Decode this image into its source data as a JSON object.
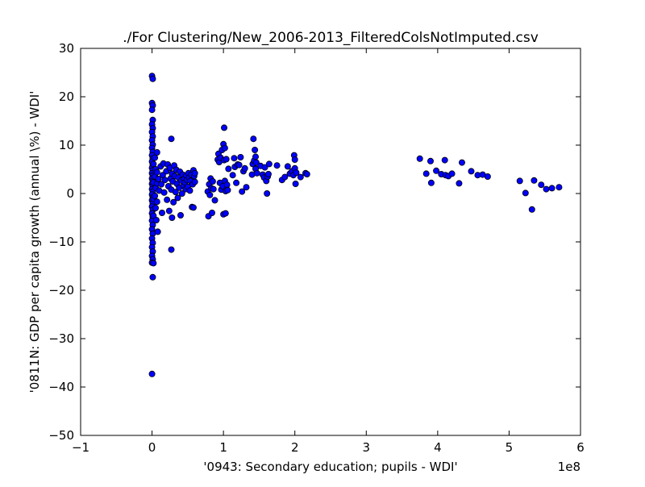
{
  "chart_data": {
    "type": "scatter",
    "title": "./For Clustering/New_2006-2013_FilteredColsNotImputed.csv",
    "xlabel": "'0943: Secondary education; pupils - WDI'",
    "ylabel": "'0811N: GDP per capita growth  (annual \\%) - WDI'",
    "x_offset_label": "1e8",
    "xlim": [
      -1,
      6
    ],
    "ylim": [
      -50,
      30
    ],
    "x_ticks": [
      -1,
      0,
      1,
      2,
      3,
      4,
      5,
      6
    ],
    "x_tick_labels": [
      "−1",
      "0",
      "1",
      "2",
      "3",
      "4",
      "5",
      "6"
    ],
    "y_ticks": [
      -50,
      -40,
      -30,
      -20,
      -10,
      0,
      10,
      20,
      30
    ],
    "y_tick_labels": [
      "−50",
      "−40",
      "−30",
      "−20",
      "−10",
      "0",
      "10",
      "20",
      "30"
    ],
    "grid": false,
    "legend": "none",
    "marker_color": "#0000ff",
    "marker_edge_color": "#000000",
    "points": [
      [
        0.0,
        24.3
      ],
      [
        0.01,
        23.7
      ],
      [
        0.0,
        18.7
      ],
      [
        0.01,
        18.2
      ],
      [
        0.0,
        17.3
      ],
      [
        0.01,
        15.2
      ],
      [
        0.0,
        14.3
      ],
      [
        0.01,
        13.5
      ],
      [
        0.0,
        12.7
      ],
      [
        0.01,
        11.8
      ],
      [
        0.0,
        11.0
      ],
      [
        0.01,
        10.1
      ],
      [
        0.0,
        9.4
      ],
      [
        0.01,
        8.6
      ],
      [
        0.0,
        7.9
      ],
      [
        0.01,
        7.2
      ],
      [
        0.0,
        6.6
      ],
      [
        0.01,
        5.9
      ],
      [
        0.0,
        5.3
      ],
      [
        0.01,
        4.8
      ],
      [
        0.0,
        4.2
      ],
      [
        0.01,
        3.7
      ],
      [
        0.0,
        3.1
      ],
      [
        0.01,
        2.6
      ],
      [
        0.0,
        2.0
      ],
      [
        0.01,
        1.5
      ],
      [
        0.0,
        0.9
      ],
      [
        0.01,
        0.4
      ],
      [
        0.0,
        -0.2
      ],
      [
        0.01,
        -0.8
      ],
      [
        0.0,
        -1.4
      ],
      [
        0.01,
        -2.0
      ],
      [
        0.0,
        -2.7
      ],
      [
        0.01,
        -3.4
      ],
      [
        0.0,
        -4.1
      ],
      [
        0.01,
        -4.8
      ],
      [
        0.0,
        -5.6
      ],
      [
        0.01,
        -6.5
      ],
      [
        0.0,
        -7.4
      ],
      [
        0.01,
        -8.3
      ],
      [
        0.0,
        -9.3
      ],
      [
        0.01,
        -10.2
      ],
      [
        0.0,
        -11.1
      ],
      [
        0.01,
        -12.0
      ],
      [
        0.0,
        -12.9
      ],
      [
        0.01,
        -13.6
      ],
      [
        0.0,
        -14.3
      ],
      [
        0.01,
        -17.3
      ],
      [
        0.0,
        -37.3
      ],
      [
        0.02,
        6.1
      ],
      [
        0.02,
        2.3
      ],
      [
        0.02,
        -1.1
      ],
      [
        0.02,
        -4.6
      ],
      [
        0.02,
        -14.4
      ],
      [
        0.04,
        7.4
      ],
      [
        0.04,
        3.5
      ],
      [
        0.04,
        -0.5
      ],
      [
        0.05,
        5.0
      ],
      [
        0.05,
        1.2
      ],
      [
        0.05,
        -3.0
      ],
      [
        0.06,
        -5.5
      ],
      [
        0.07,
        8.5
      ],
      [
        0.07,
        4.4
      ],
      [
        0.07,
        2.1
      ],
      [
        0.07,
        -1.7
      ],
      [
        0.08,
        -7.9
      ],
      [
        0.09,
        3.0
      ],
      [
        0.1,
        0.6
      ],
      [
        0.12,
        5.6
      ],
      [
        0.13,
        1.9
      ],
      [
        0.14,
        -4.0
      ],
      [
        0.15,
        3.8
      ],
      [
        0.16,
        6.2
      ],
      [
        0.17,
        0.2
      ],
      [
        0.18,
        2.8
      ],
      [
        0.2,
        4.6
      ],
      [
        0.21,
        -1.3
      ],
      [
        0.22,
        6.0
      ],
      [
        0.23,
        1.5
      ],
      [
        0.24,
        -3.6
      ],
      [
        0.25,
        5.3
      ],
      [
        0.26,
        3.1
      ],
      [
        0.27,
        -11.6
      ],
      [
        0.27,
        11.3
      ],
      [
        0.27,
        0.8
      ],
      [
        0.28,
        4.1
      ],
      [
        0.28,
        -5.0
      ],
      [
        0.29,
        2.5
      ],
      [
        0.3,
        -1.8
      ],
      [
        0.31,
        5.8
      ],
      [
        0.32,
        3.6
      ],
      [
        0.33,
        0.3
      ],
      [
        0.34,
        4.9
      ],
      [
        0.35,
        2.0
      ],
      [
        0.36,
        -0.9
      ],
      [
        0.37,
        3.3
      ],
      [
        0.38,
        1.2
      ],
      [
        0.39,
        4.5
      ],
      [
        0.4,
        -4.5
      ],
      [
        0.41,
        2.7
      ],
      [
        0.42,
        0.0
      ],
      [
        0.43,
        3.9
      ],
      [
        0.44,
        1.6
      ],
      [
        0.45,
        3.0
      ],
      [
        0.46,
        2.3
      ],
      [
        0.47,
        0.9
      ],
      [
        0.48,
        3.7
      ],
      [
        0.49,
        2.8
      ],
      [
        0.5,
        1.4
      ],
      [
        0.51,
        4.2
      ],
      [
        0.52,
        3.3
      ],
      [
        0.53,
        0.6
      ],
      [
        0.54,
        2.6
      ],
      [
        0.55,
        3.9
      ],
      [
        0.56,
        -2.8
      ],
      [
        0.57,
        1.9
      ],
      [
        0.58,
        4.8
      ],
      [
        0.58,
        -2.9
      ],
      [
        0.59,
        3.6
      ],
      [
        0.6,
        2.4
      ],
      [
        0.6,
        4.2
      ],
      [
        0.78,
        0.4
      ],
      [
        0.79,
        -4.7
      ],
      [
        0.8,
        1.9
      ],
      [
        0.81,
        -0.3
      ],
      [
        0.82,
        3.1
      ],
      [
        0.83,
        1.1
      ],
      [
        0.84,
        -4.0
      ],
      [
        0.85,
        2.5
      ],
      [
        0.86,
        0.9
      ],
      [
        0.88,
        -1.4
      ],
      [
        0.92,
        7.0
      ],
      [
        0.93,
        8.2
      ],
      [
        0.94,
        6.5
      ],
      [
        0.95,
        2.2
      ],
      [
        0.96,
        7.4
      ],
      [
        0.97,
        0.8
      ],
      [
        0.98,
        9.0
      ],
      [
        0.99,
        1.5
      ],
      [
        1.0,
        10.2
      ],
      [
        1.0,
        -4.3
      ],
      [
        1.01,
        13.6
      ],
      [
        1.01,
        6.9
      ],
      [
        1.02,
        2.6
      ],
      [
        1.02,
        9.4
      ],
      [
        1.03,
        -4.1
      ],
      [
        1.03,
        0.5
      ],
      [
        1.04,
        7.1
      ],
      [
        1.05,
        1.8
      ],
      [
        1.06,
        0.7
      ],
      [
        1.07,
        5.1
      ],
      [
        1.13,
        3.8
      ],
      [
        1.15,
        7.3
      ],
      [
        1.16,
        5.5
      ],
      [
        1.18,
        2.2
      ],
      [
        1.2,
        6.0
      ],
      [
        1.22,
        5.9
      ],
      [
        1.24,
        7.5
      ],
      [
        1.26,
        0.4
      ],
      [
        1.28,
        4.6
      ],
      [
        1.3,
        5.2
      ],
      [
        1.32,
        1.3
      ],
      [
        1.4,
        3.9
      ],
      [
        1.41,
        6.1
      ],
      [
        1.42,
        11.3
      ],
      [
        1.43,
        6.8
      ],
      [
        1.44,
        9.0
      ],
      [
        1.45,
        5.1
      ],
      [
        1.45,
        7.6
      ],
      [
        1.46,
        6.4
      ],
      [
        1.47,
        4.2
      ],
      [
        1.52,
        5.7
      ],
      [
        1.55,
        3.9
      ],
      [
        1.57,
        3.3
      ],
      [
        1.58,
        5.4
      ],
      [
        1.6,
        2.6
      ],
      [
        1.61,
        0.0
      ],
      [
        1.62,
        3.5
      ],
      [
        1.63,
        4.0
      ],
      [
        1.64,
        6.1
      ],
      [
        1.75,
        5.8
      ],
      [
        1.82,
        2.8
      ],
      [
        1.86,
        3.4
      ],
      [
        1.9,
        5.6
      ],
      [
        1.93,
        4.1
      ],
      [
        1.96,
        4.6
      ],
      [
        1.98,
        3.8
      ],
      [
        1.99,
        7.9
      ],
      [
        2.0,
        7.0
      ],
      [
        2.0,
        5.2
      ],
      [
        2.01,
        2.0
      ],
      [
        2.02,
        4.3
      ],
      [
        2.08,
        3.4
      ],
      [
        2.15,
        4.2
      ],
      [
        2.17,
        4.0
      ],
      [
        3.75,
        7.2
      ],
      [
        3.84,
        4.1
      ],
      [
        3.9,
        6.7
      ],
      [
        3.91,
        2.2
      ],
      [
        3.98,
        4.7
      ],
      [
        4.05,
        4.0
      ],
      [
        4.1,
        6.9
      ],
      [
        4.11,
        3.8
      ],
      [
        4.15,
        3.6
      ],
      [
        4.2,
        4.1
      ],
      [
        4.3,
        2.1
      ],
      [
        4.34,
        6.4
      ],
      [
        4.47,
        4.6
      ],
      [
        4.56,
        3.8
      ],
      [
        4.63,
        3.9
      ],
      [
        4.7,
        3.5
      ],
      [
        5.15,
        2.6
      ],
      [
        5.23,
        0.1
      ],
      [
        5.32,
        -3.3
      ],
      [
        5.35,
        2.7
      ],
      [
        5.45,
        1.8
      ],
      [
        5.52,
        0.9
      ],
      [
        5.6,
        1.1
      ],
      [
        5.7,
        1.3
      ]
    ]
  }
}
